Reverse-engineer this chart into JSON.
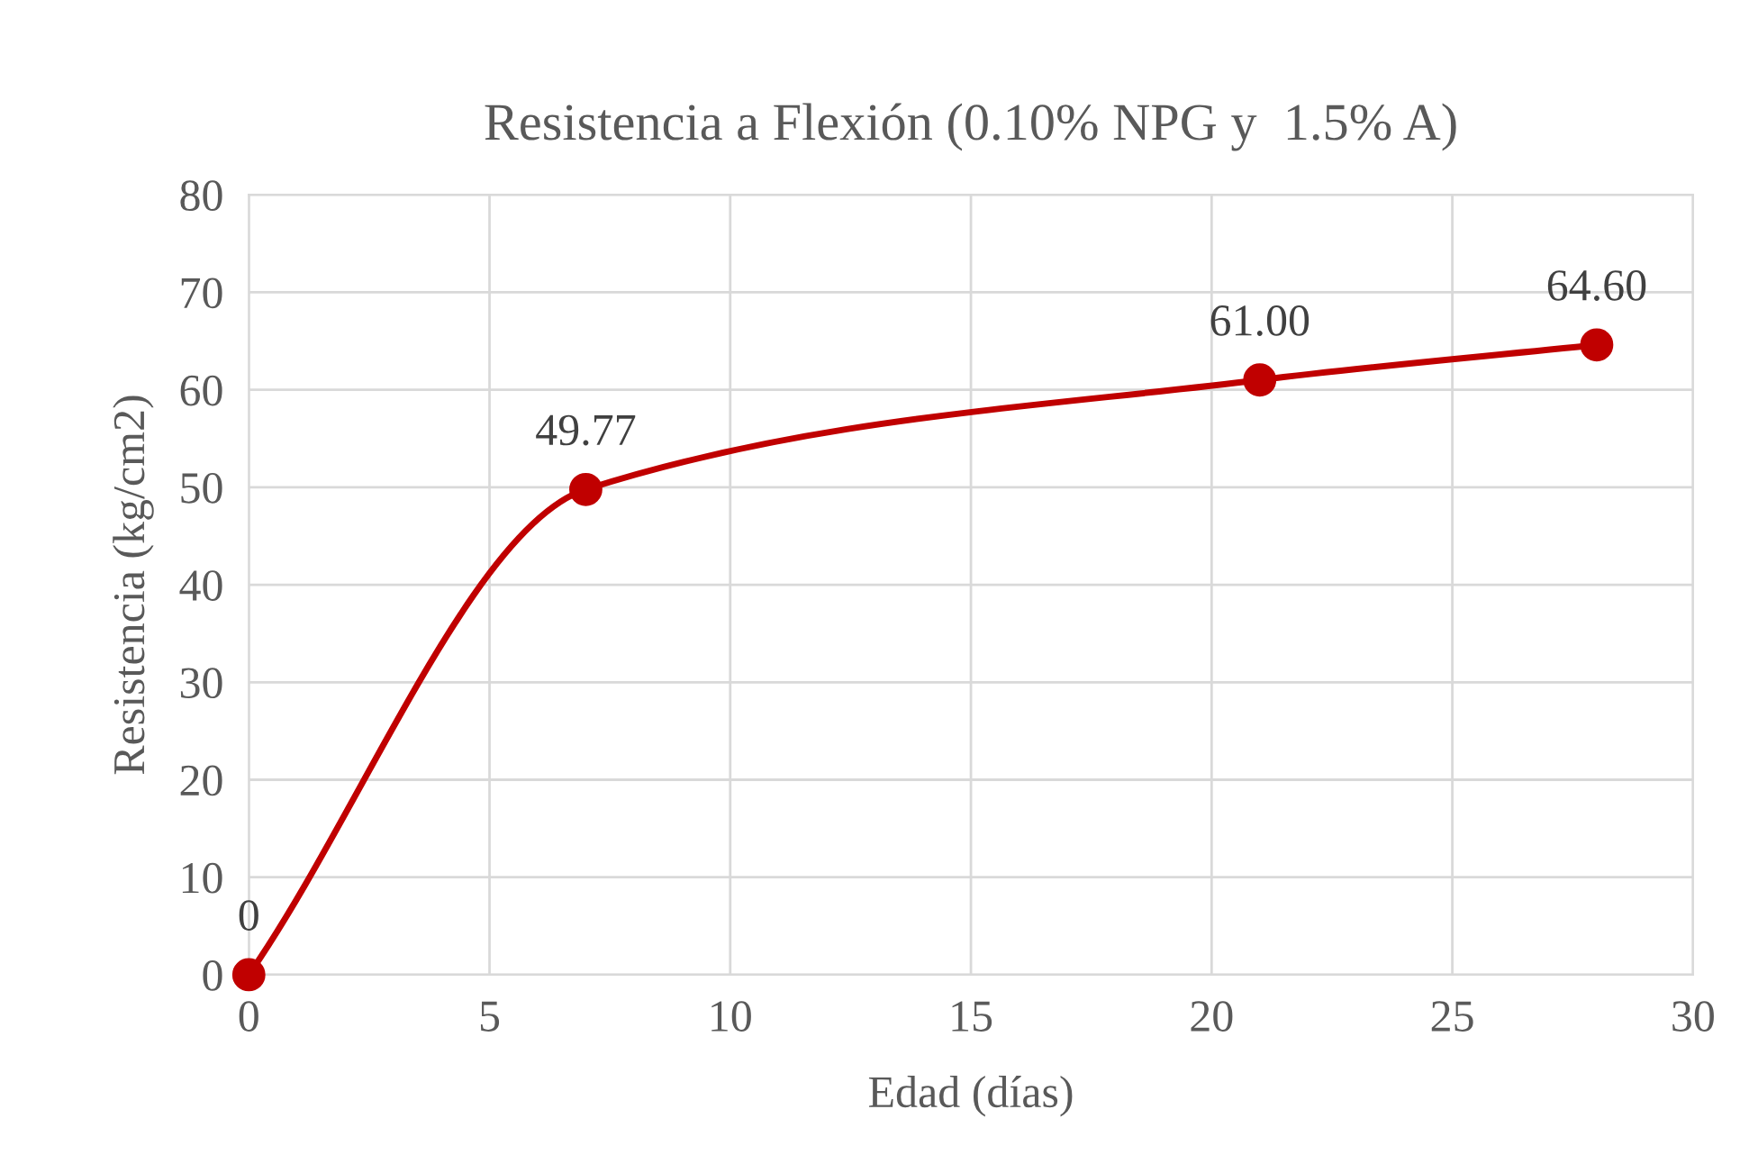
{
  "chart_data": {
    "type": "line",
    "title": "Resistencia a Flexión (0.10% NPG y  1.5% A)",
    "xlabel": "Edad (días)",
    "ylabel": "Resistencia (kg/cm2)",
    "x": [
      0,
      7,
      21,
      28
    ],
    "series": [
      {
        "color": "#c00000",
        "values": [
          0,
          49.77,
          61.0,
          64.6
        ],
        "value_labels": [
          "0",
          "49.77",
          "61.00",
          "64.60"
        ]
      }
    ],
    "xlim": [
      0,
      30
    ],
    "xticks": [
      0,
      5,
      10,
      15,
      20,
      25,
      30
    ],
    "ylim": [
      0,
      80
    ],
    "yticks": [
      0,
      10,
      20,
      30,
      40,
      50,
      60,
      70,
      80
    ],
    "grid": true,
    "marker": "circle",
    "line_style": "solid"
  }
}
